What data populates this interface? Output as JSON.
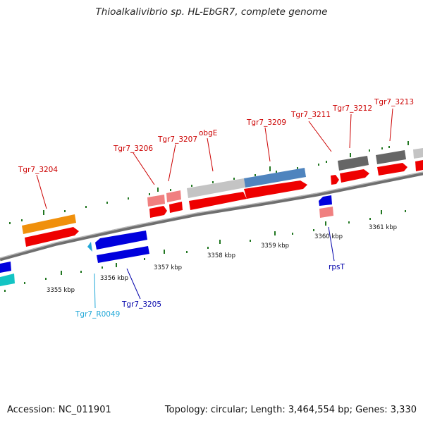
{
  "title": "Thioalkalivibrio sp. HL-EbGR7, complete genome",
  "footer": {
    "accession": "Accession: NC_011901",
    "summary": "Topology: circular; Length: 3,464,554 bp; Genes: 3,330"
  },
  "scale_labels": [
    "3355 kbp",
    "3356 kbp",
    "3357 kbp",
    "3358 kbp",
    "3359 kbp",
    "3360 kbp",
    "3361 kbp"
  ],
  "gene_labels": [
    {
      "text": "Tgr7_3204",
      "color": "#cc0000"
    },
    {
      "text": "Tgr7_3206",
      "color": "#cc0000"
    },
    {
      "text": "Tgr7_3207",
      "color": "#cc0000"
    },
    {
      "text": "obgE",
      "color": "#cc0000"
    },
    {
      "text": "Tgr7_3209",
      "color": "#cc0000"
    },
    {
      "text": "Tgr7_3211",
      "color": "#cc0000"
    },
    {
      "text": "Tgr7_3212",
      "color": "#cc0000"
    },
    {
      "text": "Tgr7_3213",
      "color": "#cc0000"
    },
    {
      "text": "Tgr7_R0049",
      "color": "#22a8d8"
    },
    {
      "text": "Tgr7_3205",
      "color": "#0000aa"
    },
    {
      "text": "rpsT",
      "color": "#0000aa"
    }
  ],
  "colors": {
    "forward_cds": "#ee0000",
    "reverse_cds": "#0000dd",
    "rna": "#22a8d8",
    "backbone": "#888888",
    "tick": "#227722"
  }
}
